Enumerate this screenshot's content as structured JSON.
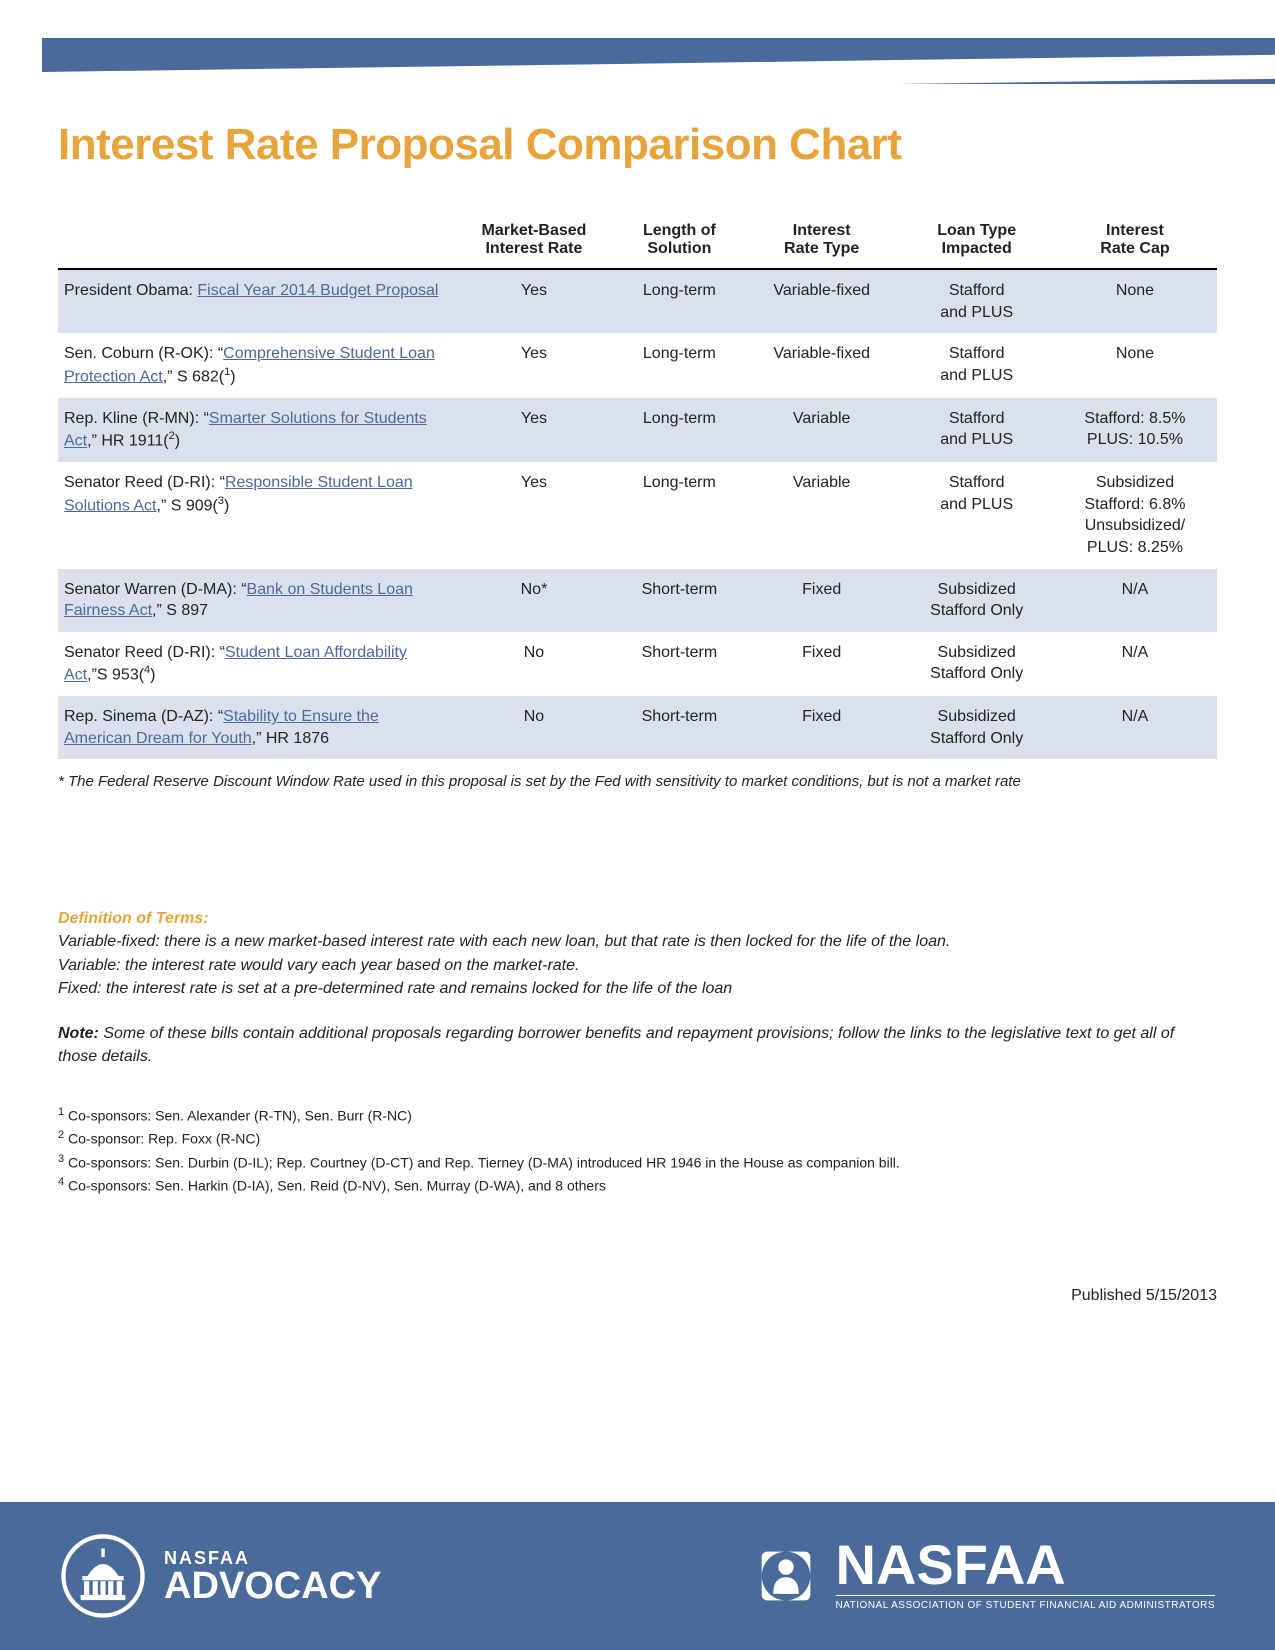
{
  "colors": {
    "accent_orange": "#e8a43b",
    "brand_blue": "#4a6a9a",
    "row_shade": "#dbe1ec",
    "text": "#222222",
    "link": "#4a6a9a",
    "white": "#ffffff"
  },
  "title": "Interest Rate Proposal Comparison Chart",
  "table": {
    "columns": [
      "",
      "Market-Based Interest Rate",
      "Length of Solution",
      "Interest Rate Type",
      "Loan Type Impacted",
      "Interest Rate Cap"
    ],
    "rows": [
      {
        "sponsor_prefix": "President Obama: ",
        "link_text": "Fiscal Year 2014 Budget Proposal",
        "suffix": "",
        "sup": "",
        "market": "Yes",
        "length": "Long-term",
        "rate_type": "Variable-fixed",
        "loan_type": "Stafford and PLUS",
        "cap": "None",
        "shade": true
      },
      {
        "sponsor_prefix": "Sen. Coburn (R-OK): “",
        "link_text": "Comprehensive Student Loan Protection Act",
        "suffix": ",” S 682(",
        "sup": "1",
        "suffix2": ")",
        "market": "Yes",
        "length": "Long-term",
        "rate_type": "Variable-fixed",
        "loan_type": "Stafford and PLUS",
        "cap": "None",
        "shade": false
      },
      {
        "sponsor_prefix": "Rep. Kline (R-MN): “",
        "link_text": "Smarter Solutions for Students Act",
        "suffix": ",” HR 1911(",
        "sup": "2",
        "suffix2": ")",
        "market": "Yes",
        "length": "Long-term",
        "rate_type": "Variable",
        "loan_type": "Stafford and PLUS",
        "cap": "Stafford: 8.5% PLUS: 10.5%",
        "shade": true
      },
      {
        "sponsor_prefix": "Senator Reed (D-RI): “",
        "link_text": "Responsible Student Loan Solutions Act",
        "suffix": ",” S 909(",
        "sup": "3",
        "suffix2": ")",
        "market": "Yes",
        "length": "Long-term",
        "rate_type": "Variable",
        "loan_type": "Stafford and PLUS",
        "cap": "Subsidized Stafford: 6.8% Unsubsidized/ PLUS: 8.25%",
        "shade": false
      },
      {
        "sponsor_prefix": "Senator Warren (D-MA): “",
        "link_text": "Bank on Students Loan Fairness Act",
        "suffix": ",” S 897",
        "sup": "",
        "market": "No*",
        "length": "Short-term",
        "rate_type": "Fixed",
        "loan_type": "Subsidized Stafford Only",
        "cap": "N/A",
        "shade": true
      },
      {
        "sponsor_prefix": "Senator Reed (D-RI): “",
        "link_text": "Student Loan Affordability Act",
        "suffix": ",”S 953(",
        "sup": "4",
        "suffix2": ")",
        "market": "No",
        "length": "Short-term",
        "rate_type": "Fixed",
        "loan_type": "Subsidized Stafford Only",
        "cap": "N/A",
        "shade": false
      },
      {
        "sponsor_prefix": "Rep. Sinema (D-AZ): “",
        "link_text": "Stability to Ensure the American Dream for Youth",
        "suffix": ",” HR 1876",
        "sup": "",
        "market": "No",
        "length": "Short-term",
        "rate_type": "Fixed",
        "loan_type": "Subsidized Stafford Only",
        "cap": "N/A",
        "shade": true
      }
    ]
  },
  "star_note": "* The Federal Reserve Discount Window Rate used in this proposal is set by the Fed with sensitivity to market conditions, but is not a market rate",
  "definitions": {
    "heading": "Definition of Terms:",
    "lines": [
      "Variable-fixed: there is a new market-based interest rate with each new loan, but that rate is then locked for the life of the loan.",
      "Variable: the interest rate would vary each year based on the market-rate.",
      "Fixed: the interest rate is set at a pre-determined rate and remains locked for the life of the loan"
    ]
  },
  "note": {
    "label": "Note:",
    "text": " Some of these bills contain additional proposals regarding borrower benefits and repayment provisions; follow the links to the legislative text to get all of those details."
  },
  "cosponsors": [
    "Co-sponsors: Sen. Alexander (R-TN), Sen. Burr (R-NC)",
    "Co-sponsor: Rep. Foxx (R-NC)",
    "Co-sponsors: Sen. Durbin (D-IL); Rep. Courtney (D-CT) and Rep. Tierney (D-MA) introduced HR 1946 in the House as companion bill.",
    "Co-sponsors: Sen. Harkin (D-IA), Sen. Reid (D-NV), Sen. Murray (D-WA), and 8 others"
  ],
  "published": "Published 5/15/2013",
  "footer": {
    "left_small": "NASFAA",
    "left_big": "ADVOCACY",
    "right_big": "NASFAA",
    "right_sub": "NATIONAL ASSOCIATION OF STUDENT FINANCIAL AID ADMINISTRATORS"
  }
}
